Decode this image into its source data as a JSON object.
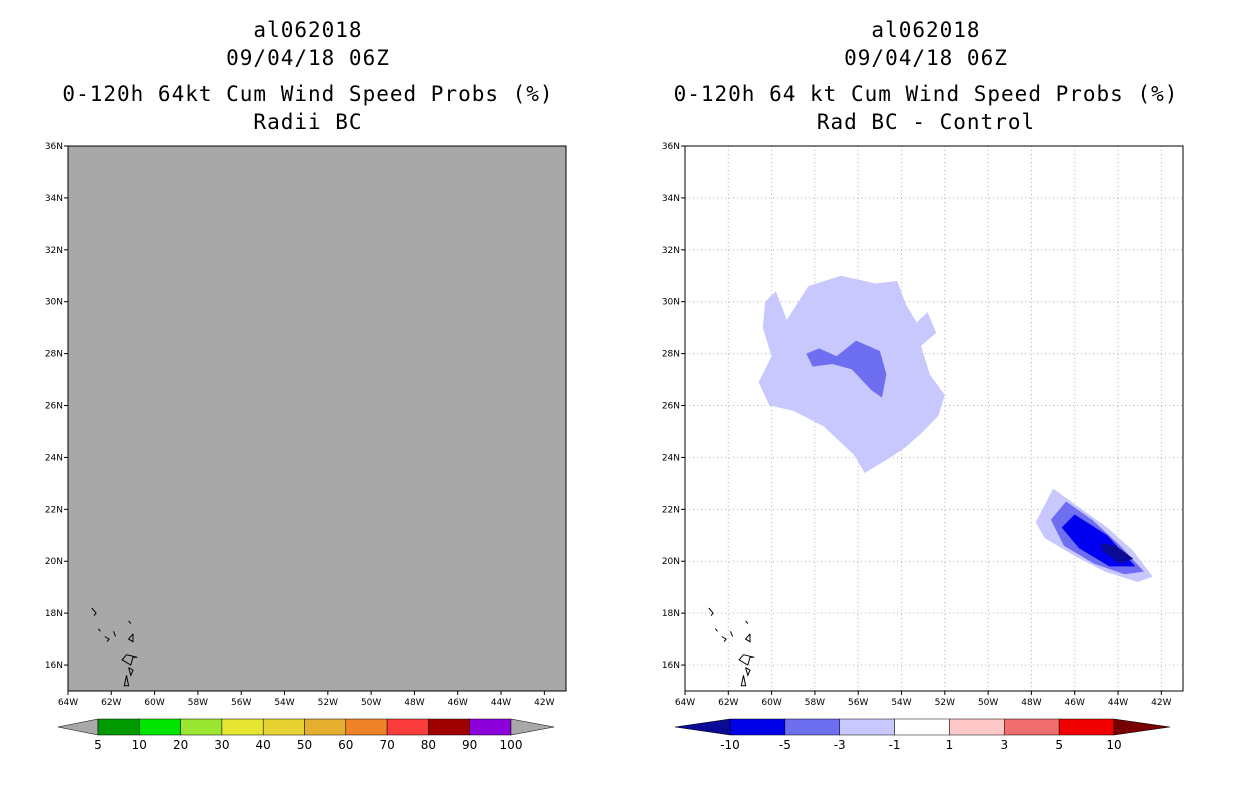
{
  "panels": [
    {
      "storm_id": "al062018",
      "datetime": "09/04/18 06Z",
      "title": "0-120h 64kt Cum Wind Speed Probs (%)",
      "subtitle": "Radii BC"
    },
    {
      "storm_id": "al062018",
      "datetime": "09/04/18 06Z",
      "title": "0-120h 64 kt Cum Wind Speed Probs (%)",
      "subtitle": "Rad BC - Control"
    }
  ],
  "chart_data": [
    {
      "type": "heatmap",
      "title": "0-120h 64kt Cum Wind Speed Probs (%)",
      "subtitle": "Radii BC",
      "x_ticks": [
        "64W",
        "62W",
        "60W",
        "58W",
        "56W",
        "54W",
        "52W",
        "50W",
        "48W",
        "46W",
        "44W",
        "42W"
      ],
      "y_ticks": [
        "16N",
        "18N",
        "20N",
        "22N",
        "24N",
        "26N",
        "28N",
        "30N",
        "32N",
        "34N",
        "36N"
      ],
      "xlim": [
        -64,
        -41
      ],
      "ylim": [
        15,
        36
      ],
      "grid": false,
      "field": "uniform probability below 5%",
      "colorbar": {
        "labels": [
          "5",
          "10",
          "20",
          "30",
          "40",
          "50",
          "60",
          "70",
          "80",
          "90",
          "100"
        ],
        "colors": [
          "#009a00",
          "#00e400",
          "#9be630",
          "#e6e632",
          "#e6d232",
          "#e6ae2e",
          "#f08228",
          "#fa3c3c",
          "#a00000",
          "#8c00dc"
        ],
        "end_color": "#a8a8a8"
      }
    },
    {
      "type": "heatmap",
      "title": "0-120h 64 kt Cum Wind Speed Probs (%)",
      "subtitle": "Rad BC - Control",
      "x_ticks": [
        "64W",
        "62W",
        "60W",
        "58W",
        "56W",
        "54W",
        "52W",
        "50W",
        "48W",
        "46W",
        "44W",
        "42W"
      ],
      "y_ticks": [
        "16N",
        "18N",
        "20N",
        "22N",
        "24N",
        "26N",
        "28N",
        "30N",
        "32N",
        "34N",
        "36N"
      ],
      "xlim": [
        -64,
        -41
      ],
      "ylim": [
        15,
        36
      ],
      "grid": true,
      "regions": [
        {
          "name": "north-light",
          "level": "-3 to -1",
          "color": "#c8c8ff",
          "outline": [
            [
              -60.3,
              30.0
            ],
            [
              -59.8,
              30.4
            ],
            [
              -59.3,
              29.3
            ],
            [
              -58.3,
              30.6
            ],
            [
              -56.8,
              31.0
            ],
            [
              -55.2,
              30.7
            ],
            [
              -54.2,
              30.8
            ],
            [
              -53.8,
              29.9
            ],
            [
              -53.3,
              29.2
            ],
            [
              -52.8,
              29.6
            ],
            [
              -52.4,
              28.8
            ],
            [
              -53.1,
              28.3
            ],
            [
              -52.7,
              27.2
            ],
            [
              -52.0,
              26.4
            ],
            [
              -52.3,
              25.6
            ],
            [
              -53.0,
              25.0
            ],
            [
              -53.8,
              24.4
            ],
            [
              -54.7,
              23.9
            ],
            [
              -55.3,
              23.6
            ],
            [
              -55.7,
              23.4
            ],
            [
              -56.2,
              24.1
            ],
            [
              -57.6,
              25.2
            ],
            [
              -59.0,
              25.8
            ],
            [
              -60.1,
              26.0
            ],
            [
              -60.6,
              26.9
            ],
            [
              -60.0,
              27.9
            ],
            [
              -60.4,
              29.0
            ]
          ]
        },
        {
          "name": "north-mid",
          "level": "-5 to -3",
          "color": "#6e6ef0",
          "outline": [
            [
              -58.4,
              28.0
            ],
            [
              -57.8,
              28.2
            ],
            [
              -57.0,
              27.9
            ],
            [
              -56.1,
              28.5
            ],
            [
              -55.0,
              28.1
            ],
            [
              -54.7,
              27.2
            ],
            [
              -54.9,
              26.3
            ],
            [
              -55.4,
              26.6
            ],
            [
              -56.3,
              27.4
            ],
            [
              -57.2,
              27.6
            ],
            [
              -58.1,
              27.5
            ]
          ]
        },
        {
          "name": "east-light",
          "level": "-3 to -1",
          "color": "#c8c8ff",
          "outline": [
            [
              -47.8,
              21.5
            ],
            [
              -47.0,
              22.8
            ],
            [
              -46.0,
              22.2
            ],
            [
              -44.5,
              21.3
            ],
            [
              -43.3,
              20.4
            ],
            [
              -42.4,
              19.4
            ],
            [
              -43.1,
              19.2
            ],
            [
              -44.6,
              19.6
            ],
            [
              -46.0,
              20.2
            ],
            [
              -47.4,
              20.9
            ]
          ]
        },
        {
          "name": "east-mid",
          "level": "-5 to -3",
          "color": "#6e6ef0",
          "outline": [
            [
              -47.1,
              21.6
            ],
            [
              -46.4,
              22.3
            ],
            [
              -45.2,
              21.6
            ],
            [
              -43.9,
              20.6
            ],
            [
              -42.8,
              19.6
            ],
            [
              -43.7,
              19.5
            ],
            [
              -45.1,
              19.9
            ],
            [
              -46.5,
              20.6
            ]
          ]
        },
        {
          "name": "east-dark",
          "level": "-10 to -5",
          "color": "#0000f0",
          "outline": [
            [
              -46.6,
              21.3
            ],
            [
              -46.0,
              21.8
            ],
            [
              -44.5,
              21.0
            ],
            [
              -43.2,
              19.8
            ],
            [
              -44.4,
              19.8
            ],
            [
              -45.8,
              20.5
            ]
          ]
        },
        {
          "name": "east-core",
          "level": "< -10",
          "color": "#0a0a96",
          "outline": [
            [
              -44.8,
              20.7
            ],
            [
              -44.1,
              20.6
            ],
            [
              -43.3,
              20.1
            ],
            [
              -43.9,
              19.9
            ],
            [
              -44.7,
              20.4
            ]
          ]
        }
      ],
      "colorbar": {
        "labels": [
          "-10",
          "-5",
          "-3",
          "-1",
          "1",
          "3",
          "5",
          "10"
        ],
        "colors": [
          "#0000e6",
          "#6e6ef0",
          "#c8c8ff",
          "#ffffff",
          "#ffc8c8",
          "#f06e6e",
          "#f00000"
        ],
        "low_color": "#0a0a96",
        "high_color": "#780000"
      }
    }
  ]
}
